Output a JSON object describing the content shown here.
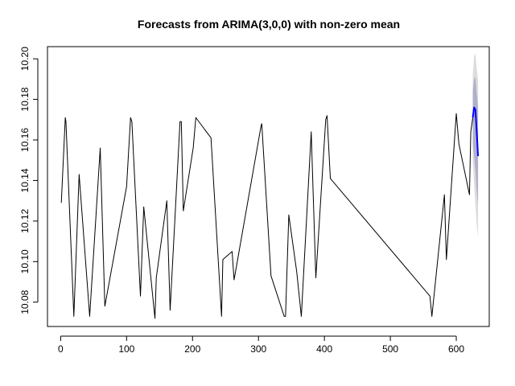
{
  "chart_data": {
    "type": "line",
    "title": "Forecasts from ARIMA(3,0,0) with non-zero mean",
    "xlabel": "",
    "ylabel": "",
    "xlim": [
      -20,
      650
    ],
    "ylim": [
      10.068,
      10.206
    ],
    "xticks": [
      0,
      100,
      200,
      300,
      400,
      500,
      600
    ],
    "yticks": [
      10.08,
      10.1,
      10.12,
      10.14,
      10.16,
      10.18,
      10.2
    ],
    "ytick_labels": [
      "10.08",
      "10.10",
      "10.12",
      "10.14",
      "10.16",
      "10.18",
      "10.20"
    ],
    "grid": false,
    "legend": "none",
    "series": [
      {
        "role": "observed",
        "color": "#000000",
        "points": [
          [
            1,
            10.129
          ],
          [
            7,
            10.171
          ],
          [
            8,
            10.169
          ],
          [
            20,
            10.073
          ],
          [
            28,
            10.143
          ],
          [
            44,
            10.073
          ],
          [
            60,
            10.156
          ],
          [
            67,
            10.078
          ],
          [
            100,
            10.137
          ],
          [
            106,
            10.171
          ],
          [
            108,
            10.169
          ],
          [
            121,
            10.083
          ],
          [
            126,
            10.127
          ],
          [
            143,
            10.072
          ],
          [
            145,
            10.092
          ],
          [
            161,
            10.13
          ],
          [
            166,
            10.076
          ],
          [
            181,
            10.169
          ],
          [
            183,
            10.169
          ],
          [
            186,
            10.125
          ],
          [
            201,
            10.156
          ],
          [
            205,
            10.171
          ],
          [
            228,
            10.161
          ],
          [
            244,
            10.073
          ],
          [
            246,
            10.101
          ],
          [
            260,
            10.105
          ],
          [
            263,
            10.091
          ],
          [
            304,
            10.167
          ],
          [
            305,
            10.168
          ],
          [
            319,
            10.093
          ],
          [
            339,
            10.073
          ],
          [
            341,
            10.073
          ],
          [
            346,
            10.123
          ],
          [
            358,
            10.095
          ],
          [
            365,
            10.073
          ],
          [
            380,
            10.164
          ],
          [
            387,
            10.092
          ],
          [
            402,
            10.17
          ],
          [
            404,
            10.172
          ],
          [
            409,
            10.141
          ],
          [
            560,
            10.083
          ],
          [
            563,
            10.073
          ],
          [
            582,
            10.133
          ],
          [
            585,
            10.101
          ],
          [
            600,
            10.173
          ],
          [
            604,
            10.158
          ],
          [
            620,
            10.133
          ],
          [
            622,
            10.164
          ],
          [
            625,
            10.171
          ]
        ]
      },
      {
        "role": "forecast",
        "color": "#0000ff",
        "points": [
          [
            625,
            10.171
          ],
          [
            627,
            10.176
          ],
          [
            629,
            10.175
          ],
          [
            631,
            10.164
          ],
          [
            633,
            10.152
          ]
        ]
      }
    ],
    "intervals": [
      {
        "level": 95,
        "color": "#dcdcdc",
        "x": [
          625,
          627,
          629,
          631,
          633
        ],
        "lower": [
          10.15,
          10.138,
          10.128,
          10.118,
          10.112
        ],
        "upper": [
          10.192,
          10.201,
          10.203,
          10.195,
          10.19
        ]
      },
      {
        "level": 80,
        "color": "#b0b0cc",
        "x": [
          625,
          627,
          629,
          631,
          633
        ],
        "lower": [
          10.158,
          10.152,
          10.145,
          10.135,
          10.128
        ],
        "upper": [
          10.184,
          10.19,
          10.191,
          10.183,
          10.176
        ]
      }
    ]
  }
}
